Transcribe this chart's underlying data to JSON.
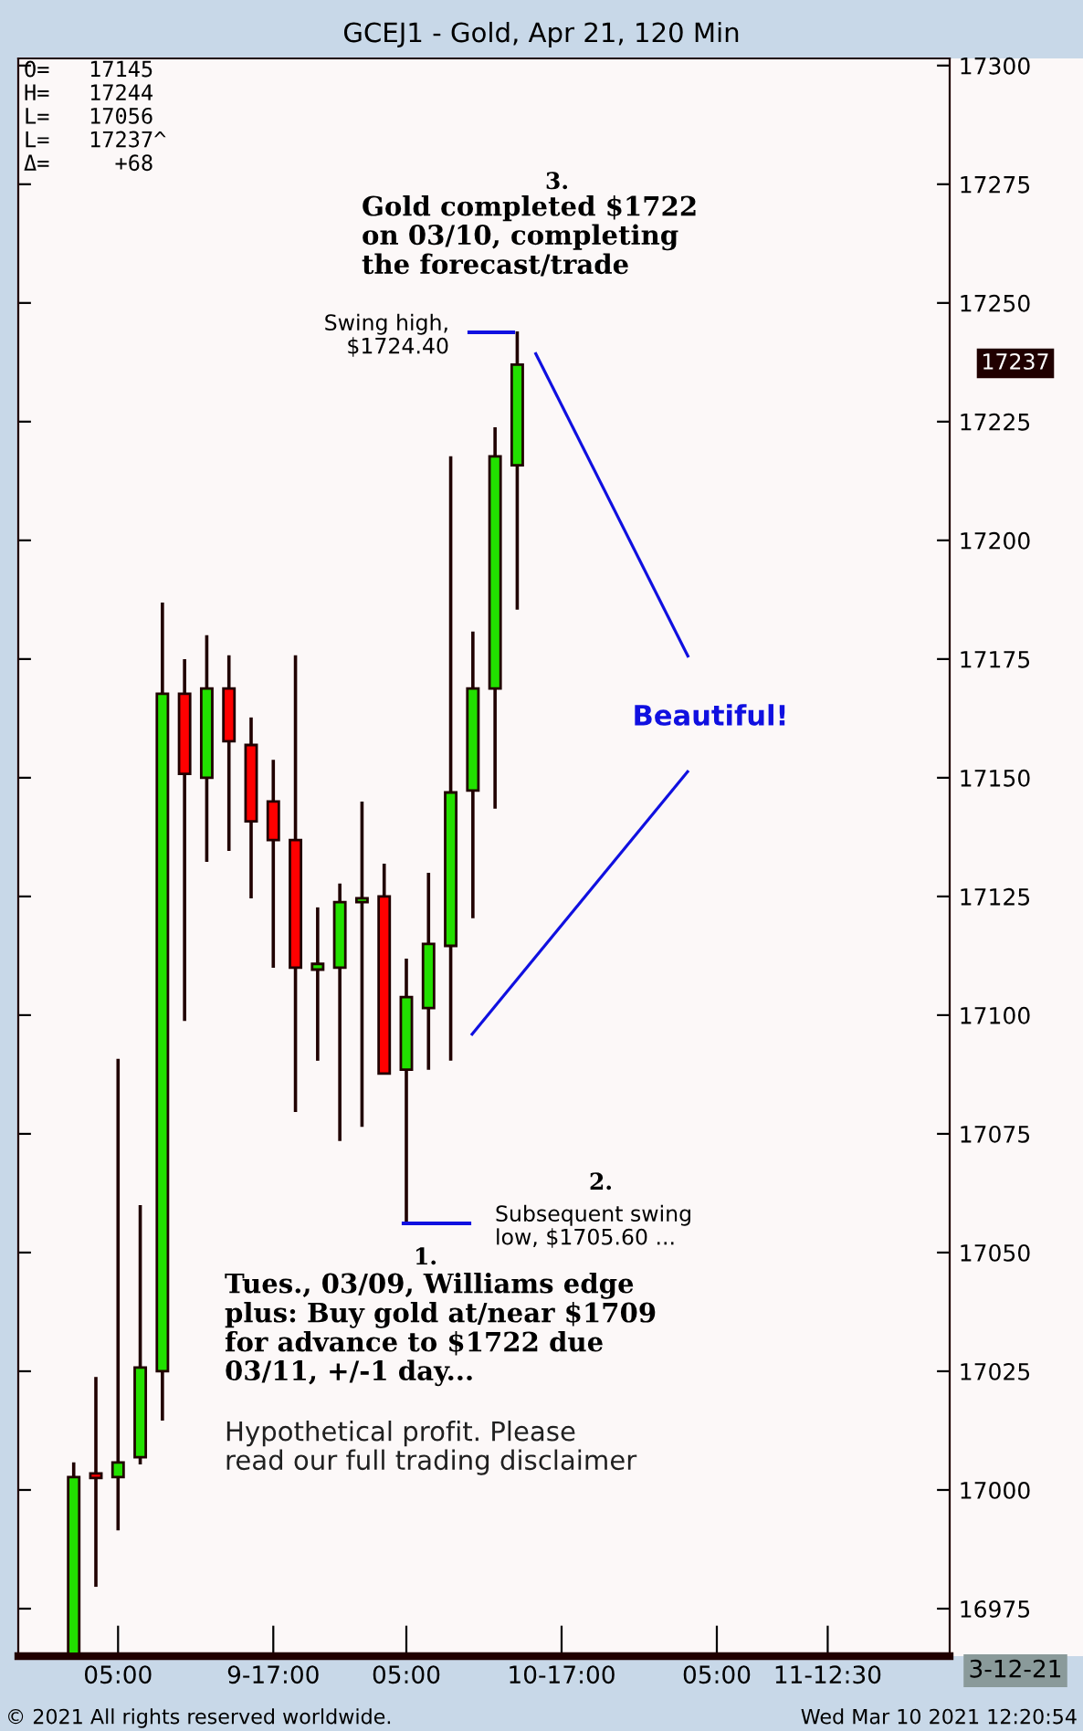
{
  "chart_data": {
    "type": "candlestick",
    "title": "GCEJ1 - Gold, Apr 21, 120 Min",
    "categories": [
      null,
      null,
      null,
      null,
      "05:00",
      null,
      null,
      null,
      null,
      null,
      null,
      "9-17:00",
      null,
      null,
      null,
      null,
      null,
      "05:00",
      null,
      null,
      null,
      null,
      null,
      null,
      "10-17:00",
      null,
      null,
      null,
      null,
      null,
      null,
      "05:00",
      null,
      null,
      null,
      null,
      "11-12:30",
      null,
      null,
      null,
      null,
      null
    ],
    "ohlc": [
      null,
      null,
      [
        16965.5,
        17005.8,
        16965,
        17002.7
      ],
      [
        17003.5,
        17023.8,
        16979.6,
        17002.5
      ],
      [
        17002.7,
        17090.8,
        16991.5,
        17005.8
      ],
      [
        17006.9,
        17060,
        17005.4,
        17025.8
      ],
      [
        17025,
        17186.9,
        17014.6,
        17167.7
      ],
      [
        17167.7,
        17175,
        17098.8,
        17150.8
      ],
      [
        17150,
        17180,
        17132.3,
        17168.8
      ],
      [
        17168.8,
        17175.8,
        17134.6,
        17157.7
      ],
      [
        17156.9,
        17162.7,
        17124.6,
        17140.8
      ],
      [
        17145,
        17153.8,
        17110,
        17136.9
      ],
      [
        17136.9,
        17175.8,
        17079.6,
        17110
      ],
      [
        17109.6,
        17122.7,
        17090.4,
        17110.8
      ],
      [
        17110,
        17127.7,
        17073.5,
        17123.8
      ],
      [
        17123.8,
        17145,
        17076.5,
        17124.6
      ],
      [
        17125,
        17131.9,
        17087.5,
        17087.7
      ],
      [
        17088.5,
        17111.9,
        17056,
        17103.8
      ],
      [
        17101.5,
        17130,
        17088.5,
        17115
      ],
      [
        17114.6,
        17217.7,
        17090.4,
        17146.9
      ],
      [
        17147.3,
        17180.8,
        17120.4,
        17168.8
      ],
      [
        17168.8,
        17223.8,
        17143.5,
        17217.7
      ],
      [
        17215.8,
        17244,
        17185.4,
        17237
      ],
      null,
      null,
      null,
      null,
      null,
      null,
      null,
      null,
      null,
      null,
      null,
      null,
      null,
      null,
      null,
      null,
      null,
      null,
      null
    ],
    "colors": [
      null,
      null,
      "#22e000",
      "#ff0000",
      "#22e000",
      "#22e000",
      "#22e000",
      "#ff0000",
      "#22e000",
      "#ff0000",
      "#ff0000",
      "#ff0000",
      "#ff0000",
      "#22e000",
      "#22e000",
      "#22e000",
      "#ff0000",
      "#22e000",
      "#22e000",
      "#22e000",
      "#22e000",
      "#22e000",
      "#22e000",
      null,
      null,
      null,
      null,
      null,
      null,
      null,
      null,
      null,
      null,
      null,
      null,
      null,
      null,
      null,
      null,
      null,
      null,
      null
    ],
    "ylim": [
      16965,
      17301.5
    ],
    "yticks": [
      16975,
      17000,
      17025,
      17050,
      17075,
      17100,
      17125,
      17150,
      17175,
      17200,
      17225,
      17250,
      17275,
      17300
    ],
    "annotations": [
      "O=   17145\nH=   17244\nL=   17056\nL=   17237^\nΔ=     +68",
      "3.",
      "Gold completed $1722\non 03/10, completing\nthe forecast/trade",
      "Swing high,\n$1724.40",
      "Beautiful!",
      "2.",
      "Subsequent swing\nlow, $1705.60 ...",
      "1.",
      "Tues., 03/09, Williams edge\nplus: Buy gold at/near $1709\nfor advance to $1722 due\n03/11, +/-1 day...",
      "Hypothetical profit. Please\nread our full trading disclaimer",
      "17237",
      "3-12-21",
      "© 2021 All rights reserved worldwide.",
      "Wed Mar 10 2021 12:20:54"
    ]
  }
}
